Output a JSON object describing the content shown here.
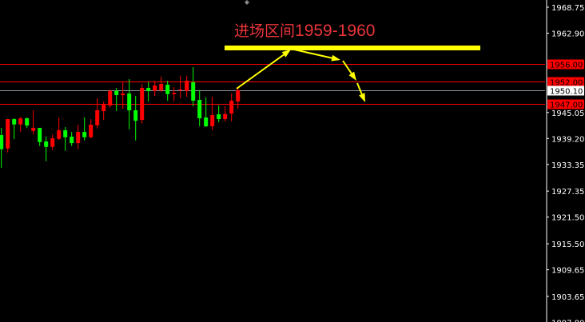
{
  "chart_data": {
    "type": "candlestick",
    "title": "",
    "annotation": {
      "prefix": "进场区间",
      "range": "1959-1960"
    },
    "colors": {
      "up": "#ff0000",
      "down": "#00ff00",
      "background": "#000000",
      "annotation": "#ffff00",
      "level_line": "#ff0000",
      "current_line": "#8a949c"
    },
    "ylim": [
      1897.8,
      1970.4
    ],
    "y_ticks": [
      "1968.75",
      "1962.90",
      "1945.05",
      "1939.20",
      "1933.35",
      "1927.35",
      "1921.50",
      "1915.50",
      "1909.65",
      "1903.65",
      "1897.80"
    ],
    "levels": [
      {
        "label": "1956.00",
        "value": 1956.0
      },
      {
        "label": "1952.00",
        "value": 1952.0
      },
      {
        "label": "1947.00",
        "value": 1947.0
      }
    ],
    "current_price": {
      "label": "1950.10",
      "value": 1950.1
    },
    "entry_zone": 1959.5,
    "candles": [
      {
        "o": 1939.96,
        "h": 1941.58,
        "l": 1932.6,
        "c": 1936.78
      },
      {
        "o": 1936.96,
        "h": 1943.56,
        "l": 1936.06,
        "c": 1943.56
      },
      {
        "o": 1943.56,
        "h": 1943.74,
        "l": 1939.06,
        "c": 1942.36
      },
      {
        "o": 1942.36,
        "h": 1944.04,
        "l": 1940.68,
        "c": 1943.74
      },
      {
        "o": 1943.74,
        "h": 1943.92,
        "l": 1941.58,
        "c": 1942.12
      },
      {
        "o": 1940.92,
        "h": 1945.54,
        "l": 1940.14,
        "c": 1941.58
      },
      {
        "o": 1941.58,
        "h": 1941.58,
        "l": 1937.5,
        "c": 1938.4
      },
      {
        "o": 1938.52,
        "h": 1939.6,
        "l": 1934.08,
        "c": 1937.32
      },
      {
        "o": 1937.32,
        "h": 1940.08,
        "l": 1936.6,
        "c": 1939.24
      },
      {
        "o": 1939.12,
        "h": 1943.92,
        "l": 1938.88,
        "c": 1941.04
      },
      {
        "o": 1941.04,
        "h": 1941.76,
        "l": 1936.42,
        "c": 1939.48
      },
      {
        "o": 1939.6,
        "h": 1940.68,
        "l": 1937.5,
        "c": 1938.16
      },
      {
        "o": 1938.16,
        "h": 1942.3,
        "l": 1936.78,
        "c": 1940.68
      },
      {
        "o": 1940.68,
        "h": 1943.92,
        "l": 1938.76,
        "c": 1939.48
      },
      {
        "o": 1939.48,
        "h": 1943.56,
        "l": 1939.24,
        "c": 1942.3
      },
      {
        "o": 1942.18,
        "h": 1948.24,
        "l": 1941.46,
        "c": 1945.54
      },
      {
        "o": 1945.36,
        "h": 1947.52,
        "l": 1943.38,
        "c": 1946.98
      },
      {
        "o": 1946.62,
        "h": 1950.22,
        "l": 1946.14,
        "c": 1949.92
      },
      {
        "o": 1949.92,
        "h": 1950.58,
        "l": 1945.36,
        "c": 1948.96
      },
      {
        "o": 1948.96,
        "h": 1951.9,
        "l": 1945.9,
        "c": 1949.32
      },
      {
        "o": 1949.32,
        "h": 1952.56,
        "l": 1941.28,
        "c": 1945.54
      },
      {
        "o": 1945.54,
        "h": 1948.78,
        "l": 1938.76,
        "c": 1943.2
      },
      {
        "o": 1943.38,
        "h": 1951.48,
        "l": 1942.54,
        "c": 1950.58
      },
      {
        "o": 1950.58,
        "h": 1951.9,
        "l": 1947.52,
        "c": 1949.92
      },
      {
        "o": 1949.92,
        "h": 1952.2,
        "l": 1948.78,
        "c": 1951.12
      },
      {
        "o": 1950.0,
        "h": 1953.16,
        "l": 1949.74,
        "c": 1951.48
      },
      {
        "o": 1951.3,
        "h": 1952.2,
        "l": 1947.7,
        "c": 1949.2
      },
      {
        "o": 1949.2,
        "h": 1950.76,
        "l": 1947.58,
        "c": 1949.5
      },
      {
        "o": 1950.1,
        "h": 1953.34,
        "l": 1948.24,
        "c": 1950.22
      },
      {
        "o": 1949.92,
        "h": 1953.34,
        "l": 1948.6,
        "c": 1952.2
      },
      {
        "o": 1951.84,
        "h": 1955.26,
        "l": 1946.44,
        "c": 1947.7
      },
      {
        "o": 1947.88,
        "h": 1950.1,
        "l": 1941.94,
        "c": 1943.74
      },
      {
        "o": 1943.92,
        "h": 1948.42,
        "l": 1941.76,
        "c": 1941.94
      },
      {
        "o": 1941.94,
        "h": 1948.6,
        "l": 1941.04,
        "c": 1944.46
      },
      {
        "o": 1944.64,
        "h": 1946.62,
        "l": 1942.84,
        "c": 1943.56
      },
      {
        "o": 1943.56,
        "h": 1946.44,
        "l": 1943.02,
        "c": 1944.7
      },
      {
        "o": 1944.82,
        "h": 1949.32,
        "l": 1943.02,
        "c": 1947.7
      },
      {
        "o": 1947.52,
        "h": 1950.58,
        "l": 1945.9,
        "c": 1950.04
      }
    ]
  }
}
